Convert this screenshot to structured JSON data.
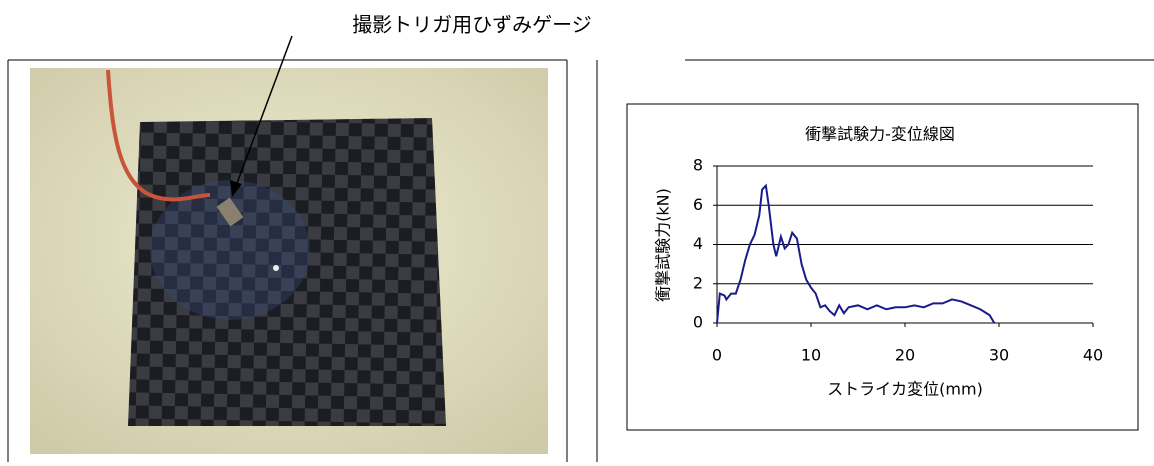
{
  "annotation": "撮影トリガ用ひずみゲージ",
  "chart_data": {
    "type": "line",
    "title": "衝撃試験力-変位線図",
    "x_label": "ストライカ変位(mm)",
    "y_label": "衝撃試験力(kN)",
    "x": [
      0,
      0.3,
      0.8,
      1,
      1.5,
      2,
      2.5,
      3,
      3.5,
      4,
      4.5,
      4.8,
      5.2,
      5.5,
      6,
      6.3,
      6.8,
      7.2,
      7.6,
      8,
      8.5,
      9,
      9.5,
      10,
      10.5,
      11,
      11.5,
      12,
      12.5,
      13,
      13.5,
      14,
      15,
      16,
      17,
      18,
      19,
      20,
      21,
      22,
      23,
      24,
      25,
      26,
      27,
      28,
      29,
      29.5
    ],
    "values": [
      0,
      1.5,
      1.4,
      1.2,
      1.5,
      1.5,
      2.2,
      3.2,
      4.0,
      4.5,
      5.5,
      6.8,
      7.0,
      6.0,
      4.0,
      3.4,
      4.4,
      3.8,
      4.0,
      4.6,
      4.3,
      3.0,
      2.2,
      1.8,
      1.5,
      0.8,
      0.9,
      0.6,
      0.4,
      0.9,
      0.5,
      0.8,
      0.9,
      0.7,
      0.9,
      0.7,
      0.8,
      0.8,
      0.9,
      0.8,
      1.0,
      1.0,
      1.2,
      1.1,
      0.9,
      0.7,
      0.4,
      0
    ],
    "color": "#1a1a8c",
    "xlim": [
      0,
      40
    ],
    "xticks": [
      0,
      10,
      20,
      30,
      40
    ],
    "ylim": [
      0,
      8
    ],
    "yticks": [
      0,
      2,
      4,
      6,
      8
    ],
    "grid": true
  }
}
